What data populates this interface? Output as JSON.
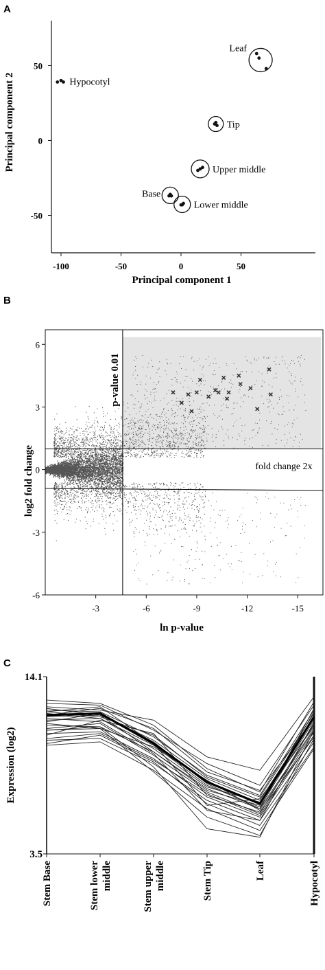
{
  "chart_data": [
    {
      "panel": "A",
      "type": "scatter",
      "xlabel": "Principal component 1",
      "ylabel": "Principal component  2",
      "xlim": [
        -108,
        112
      ],
      "ylim": [
        -75,
        80
      ],
      "xticks": [
        "-100",
        "-50",
        "0",
        "50"
      ],
      "xtick_values": [
        -100,
        -50,
        0,
        50
      ],
      "yticks": [
        "50",
        "0",
        "-50"
      ],
      "ytick_values": [
        50,
        0,
        -50
      ],
      "groups": [
        {
          "label": "Hypocotyl",
          "points": [
            [
              -103,
              39
            ],
            [
              -100,
              40
            ],
            [
              -98,
              39
            ]
          ]
        },
        {
          "label": "Leaf",
          "points": [
            [
              63,
              58
            ],
            [
              65,
              55
            ],
            [
              71,
              48
            ]
          ]
        },
        {
          "label": "Tip",
          "points": [
            [
              28,
              11
            ],
            [
              29,
              12
            ],
            [
              30,
              10
            ]
          ]
        },
        {
          "label": "Upper middle",
          "points": [
            [
              14,
              -20
            ],
            [
              16,
              -19
            ],
            [
              18,
              -18
            ]
          ]
        },
        {
          "label": "Base",
          "points": [
            [
              -10,
              -37
            ],
            [
              -9,
              -36
            ],
            [
              -8,
              -37
            ]
          ]
        },
        {
          "label": "Lower middle",
          "points": [
            [
              0,
              -43
            ],
            [
              1,
              -43
            ],
            [
              2,
              -42
            ]
          ]
        }
      ]
    },
    {
      "panel": "B",
      "type": "scatter",
      "xlabel": "ln p-value",
      "ylabel": "log2 fold change",
      "xlim": [
        0,
        -16.5
      ],
      "ylim": [
        -6,
        6.7
      ],
      "xticks": [
        "-3",
        "-6",
        "-9",
        "-12",
        "-15"
      ],
      "xtick_values": [
        -3,
        -6,
        -9,
        -12,
        -15
      ],
      "yticks": [
        "6",
        "3",
        "0",
        "-3",
        "-6"
      ],
      "ytick_values": [
        6,
        3,
        0,
        -3,
        -6
      ],
      "thresholds": {
        "pvalue_line_x": -4.6,
        "pvalue_label": "p-value 0.01",
        "fold_upper_y": 1.0,
        "fold_lower_y": -0.9,
        "fold_label": "fold change 2x"
      },
      "highlighted": [
        [
          -7.6,
          3.7
        ],
        [
          -8.1,
          3.2
        ],
        [
          -8.5,
          3.6
        ],
        [
          -8.7,
          2.8
        ],
        [
          -9.0,
          3.7
        ],
        [
          -9.2,
          4.3
        ],
        [
          -9.7,
          3.5
        ],
        [
          -10.1,
          3.8
        ],
        [
          -10.3,
          3.7
        ],
        [
          -10.6,
          4.4
        ],
        [
          -10.8,
          3.4
        ],
        [
          -10.9,
          3.7
        ],
        [
          -11.5,
          4.5
        ],
        [
          -11.6,
          4.1
        ],
        [
          -12.2,
          3.9
        ],
        [
          -12.6,
          2.9
        ],
        [
          -13.3,
          4.8
        ],
        [
          -13.4,
          3.6
        ]
      ]
    },
    {
      "panel": "C",
      "type": "line",
      "ylabel": "Expression (log2)",
      "categories": [
        "Stem Base",
        "Stem lower\nmiddle",
        "Stem upper\nmiddle",
        "Stem Tip",
        "Leaf",
        "Hypocotyl"
      ],
      "ylim": [
        3.5,
        14.1
      ],
      "yticks": [
        "14.1",
        "3.5"
      ],
      "mean_series": [
        11.8,
        11.9,
        10.1,
        7.8,
        6.5,
        11.7
      ],
      "series": [
        {
          "values": [
            12.7,
            12.5,
            11.2,
            8.6,
            7.2,
            12.6
          ]
        },
        {
          "values": [
            12.5,
            12.4,
            10.9,
            8.9,
            7.6,
            12.4
          ]
        },
        {
          "values": [
            12.3,
            12.1,
            11.5,
            9.3,
            8.5,
            12.9
          ]
        },
        {
          "values": [
            12.1,
            12.0,
            10.5,
            8.2,
            7.0,
            12.1
          ]
        },
        {
          "values": [
            12.0,
            11.7,
            10.6,
            8.1,
            6.9,
            11.9
          ]
        },
        {
          "values": [
            11.9,
            11.6,
            10.0,
            7.6,
            6.3,
            11.5
          ]
        },
        {
          "values": [
            11.7,
            11.8,
            10.3,
            8.0,
            6.7,
            11.7
          ]
        },
        {
          "values": [
            11.5,
            11.6,
            9.8,
            7.5,
            6.6,
            11.2
          ]
        },
        {
          "values": [
            11.4,
            11.9,
            10.2,
            7.7,
            6.2,
            12.2
          ]
        },
        {
          "values": [
            11.2,
            11.1,
            9.6,
            7.4,
            6.2,
            11.0
          ]
        },
        {
          "values": [
            11.0,
            11.3,
            9.4,
            7.2,
            5.9,
            11.3
          ]
        },
        {
          "values": [
            10.9,
            11.0,
            9.9,
            7.9,
            6.1,
            10.9
          ]
        },
        {
          "values": [
            10.7,
            10.8,
            9.2,
            6.9,
            5.7,
            10.6
          ]
        },
        {
          "values": [
            10.6,
            11.5,
            10.7,
            7.0,
            6.0,
            10.5
          ]
        },
        {
          "values": [
            10.4,
            10.7,
            9.1,
            7.1,
            5.8,
            10.8
          ]
        },
        {
          "values": [
            10.3,
            10.4,
            8.9,
            6.7,
            5.5,
            10.2
          ]
        },
        {
          "values": [
            10.1,
            10.6,
            9.0,
            6.5,
            5.2,
            9.9
          ]
        },
        {
          "values": [
            10.0,
            10.2,
            8.5,
            6.2,
            4.9,
            9.8
          ]
        },
        {
          "values": [
            11.8,
            12.2,
            11.0,
            8.4,
            7.3,
            11.6
          ]
        },
        {
          "values": [
            12.2,
            11.8,
            9.6,
            7.3,
            6.4,
            12.0
          ]
        },
        {
          "values": [
            11.3,
            11.0,
            8.4,
            5.7,
            4.6,
            10.4
          ]
        },
        {
          "values": [
            11.6,
            11.4,
            9.5,
            6.1,
            5.5,
            11.4
          ]
        },
        {
          "values": [
            12.0,
            12.3,
            10.1,
            6.4,
            6.8,
            11.1
          ]
        },
        {
          "values": [
            10.9,
            11.1,
            8.7,
            5.0,
            4.5,
            10.9
          ]
        }
      ]
    }
  ]
}
